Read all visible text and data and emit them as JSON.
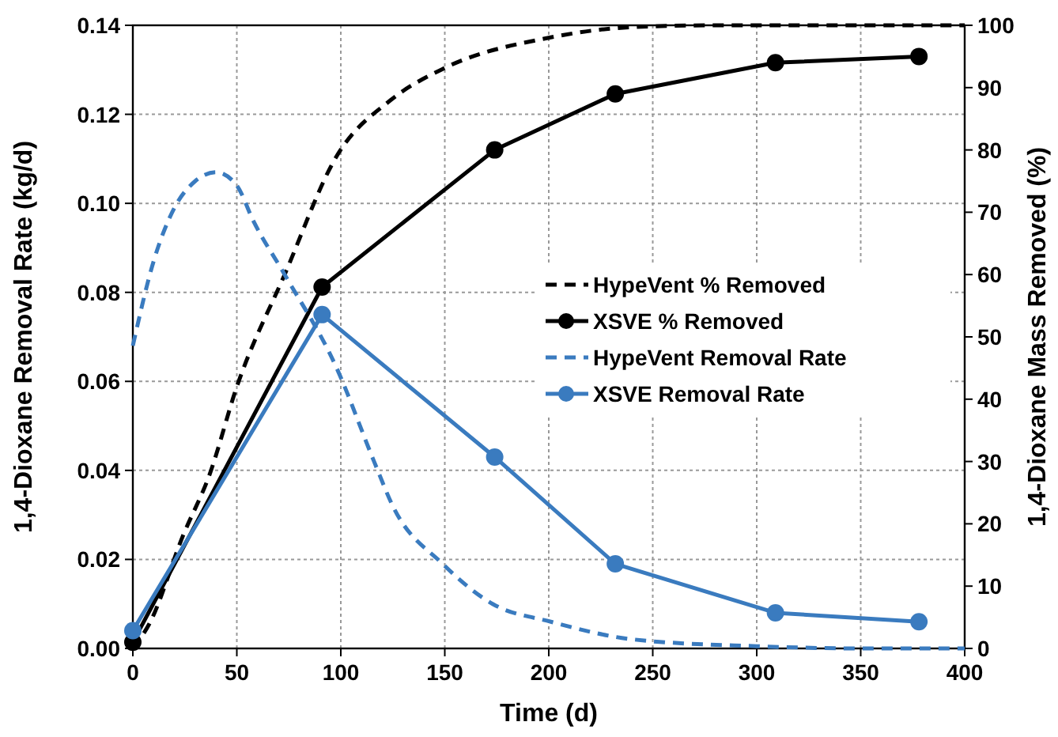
{
  "chart_data": {
    "type": "line",
    "xlabel": "Time (d)",
    "ylabel": "1,4-Dioxane Removal Rate (kg/d)",
    "y2label": "1,4-Dioxane Mass Removed (%)",
    "xlim": [
      0,
      400
    ],
    "xticks": [
      0,
      50,
      100,
      150,
      200,
      250,
      300,
      350,
      400
    ],
    "ylim": [
      0,
      0.14
    ],
    "yticks": [
      {
        "value": 0,
        "label": "0.00"
      },
      {
        "value": 0.02,
        "label": "0.02"
      },
      {
        "value": 0.04,
        "label": "0.04"
      },
      {
        "value": 0.06,
        "label": "0.06"
      },
      {
        "value": 0.08,
        "label": "0.08"
      },
      {
        "value": 0.1,
        "label": "0.10"
      },
      {
        "value": 0.12,
        "label": "0.12"
      },
      {
        "value": 0.14,
        "label": "0.14"
      }
    ],
    "y2lim": [
      0,
      100
    ],
    "y2ticks": [
      0,
      10,
      20,
      30,
      40,
      50,
      60,
      70,
      80,
      90,
      100
    ],
    "grid": true,
    "legend": "right",
    "series": [
      {
        "name": "HypeVent % Removed",
        "color": "#000000",
        "axis": "y2",
        "line_style": "dashed",
        "marker": "none",
        "x": [
          0,
          8,
          24,
          37,
          50,
          73,
          98,
          124,
          149,
          200,
          240,
          280,
          340,
          400
        ],
        "values": [
          0,
          4,
          18,
          28,
          42,
          60,
          79,
          88,
          93,
          98,
          99.7,
          100,
          100,
          100
        ]
      },
      {
        "name": "XSVE % Removed",
        "color": "#000000",
        "axis": "y2",
        "line_style": "solid",
        "marker": "circle",
        "x": [
          0,
          91,
          174,
          232,
          309,
          378
        ],
        "values": [
          1,
          58,
          80,
          89,
          94,
          95
        ]
      },
      {
        "name": "HypeVent Removal Rate",
        "color": "#3a7bbf",
        "line_style": "dashed",
        "marker": "none",
        "x": [
          0,
          10,
          20,
          30,
          40,
          50,
          58,
          73,
          98,
          116,
          125,
          149,
          173,
          201,
          241,
          300,
          350,
          400
        ],
        "values": [
          0.068,
          0.087,
          0.099,
          0.105,
          0.107,
          0.104,
          0.096,
          0.084,
          0.063,
          0.042,
          0.032,
          0.019,
          0.01,
          0.006,
          0.002,
          0.0005,
          0,
          0
        ]
      },
      {
        "name": "XSVE Removal Rate",
        "color": "#3a7bbf",
        "line_style": "solid",
        "marker": "circle",
        "x": [
          0,
          91,
          174,
          232,
          309,
          378
        ],
        "values": [
          0.004,
          0.075,
          0.043,
          0.019,
          0.008,
          0.006
        ]
      }
    ]
  }
}
